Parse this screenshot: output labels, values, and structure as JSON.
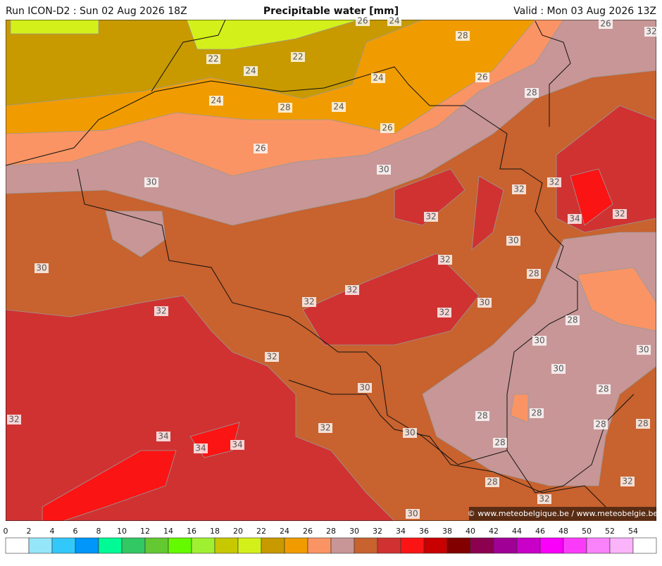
{
  "header": {
    "left": "Run ICON-D2 : Sun 02 Aug 2026 18Z",
    "title": "Precipitable water [mm]",
    "right": "Valid : Mon 03 Aug 2026 13Z"
  },
  "map": {
    "contour_labels": [
      "26",
      "24",
      "28",
      "26",
      "32",
      "22",
      "22",
      "24",
      "24",
      "26",
      "28",
      "24",
      "28",
      "24",
      "26",
      "26",
      "30",
      "30",
      "32",
      "32",
      "32",
      "34",
      "32",
      "30",
      "30",
      "32",
      "28",
      "32",
      "32",
      "30",
      "32",
      "32",
      "28",
      "30",
      "30",
      "32",
      "30",
      "30",
      "28",
      "32",
      "28",
      "28",
      "28",
      "28",
      "32",
      "30",
      "34",
      "34",
      "34",
      "28",
      "28",
      "32",
      "32",
      "30"
    ],
    "credit": "© www.meteobelgique.be / www.meteobelgie.be"
  },
  "colorbar": {
    "ticks": [
      0,
      2,
      4,
      6,
      8,
      10,
      12,
      14,
      16,
      18,
      20,
      22,
      24,
      26,
      28,
      30,
      32,
      34,
      36,
      38,
      40,
      42,
      44,
      46,
      48,
      50,
      52,
      54
    ],
    "colors": [
      "#ffffff",
      "#96e6fa",
      "#32c8fa",
      "#0096fa",
      "#00fa96",
      "#32c864",
      "#64c832",
      "#64fa00",
      "#a0f032",
      "#c8c800",
      "#d4f01a",
      "#c89a00",
      "#f09c00",
      "#fa9464",
      "#c89696",
      "#c8622e",
      "#d03232",
      "#fa1414",
      "#c80000",
      "#820000",
      "#8c0050",
      "#a00096",
      "#c800c8",
      "#fa00fa",
      "#fa3cfa",
      "#fa82fa",
      "#fab4fa",
      "#ffffff"
    ]
  }
}
